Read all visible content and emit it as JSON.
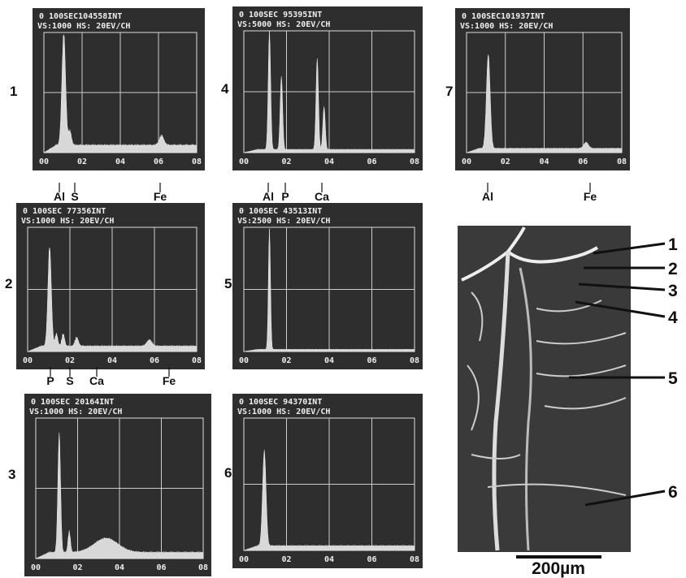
{
  "panels": [
    {
      "number": "1",
      "header": "0   100SEC104558INT",
      "settings": "VS:1000  HS: 20EV/CH",
      "axis_labels": [
        "00",
        "02",
        "04",
        "06",
        "08"
      ],
      "elements": [
        "Al",
        "S",
        "Fe"
      ]
    },
    {
      "number": "4",
      "header": "0   100SEC 95395INT",
      "settings": "VS:5000  HS: 20EV/CH",
      "axis_labels": [
        "00",
        "02",
        "04",
        "06",
        "08"
      ],
      "elements": [
        "Al",
        "P",
        "Ca"
      ]
    },
    {
      "number": "7",
      "header": "0   100SEC101937INT",
      "settings": "VS:1000  HS: 20EV/CH",
      "axis_labels": [
        "00",
        "02",
        "04",
        "06",
        "08"
      ],
      "elements": [
        "Al",
        "Fe"
      ]
    },
    {
      "number": "2",
      "header": "0   100SEC 77356INT",
      "settings": "VS:1000  HS: 20EV/CH",
      "axis_labels": [
        "00",
        "02",
        "04",
        "06",
        "08"
      ],
      "elements": [
        "P",
        "S",
        "Ca",
        "Fe"
      ]
    },
    {
      "number": "5",
      "header": "0   100SEC 43513INT",
      "settings": "VS:2500  HS: 20EV/CH",
      "axis_labels": [
        "00",
        "02",
        "04",
        "06",
        "08"
      ],
      "elements": []
    },
    {
      "number": "3",
      "header": "0   100SEC 20164INT",
      "settings": "VS:1000  HS: 20EV/CH",
      "axis_labels": [
        "00",
        "02",
        "04",
        "06",
        "08"
      ],
      "elements": []
    },
    {
      "number": "6",
      "header": "0   100SEC 94370INT",
      "settings": "VS:1000  HS: 20EV/CH",
      "axis_labels": [
        "00",
        "02",
        "04",
        "06",
        "08"
      ],
      "elements": []
    }
  ],
  "micrograph": {
    "labels": [
      "1",
      "2",
      "3",
      "4",
      "5",
      "6"
    ],
    "scale_bar": "200µm"
  }
}
